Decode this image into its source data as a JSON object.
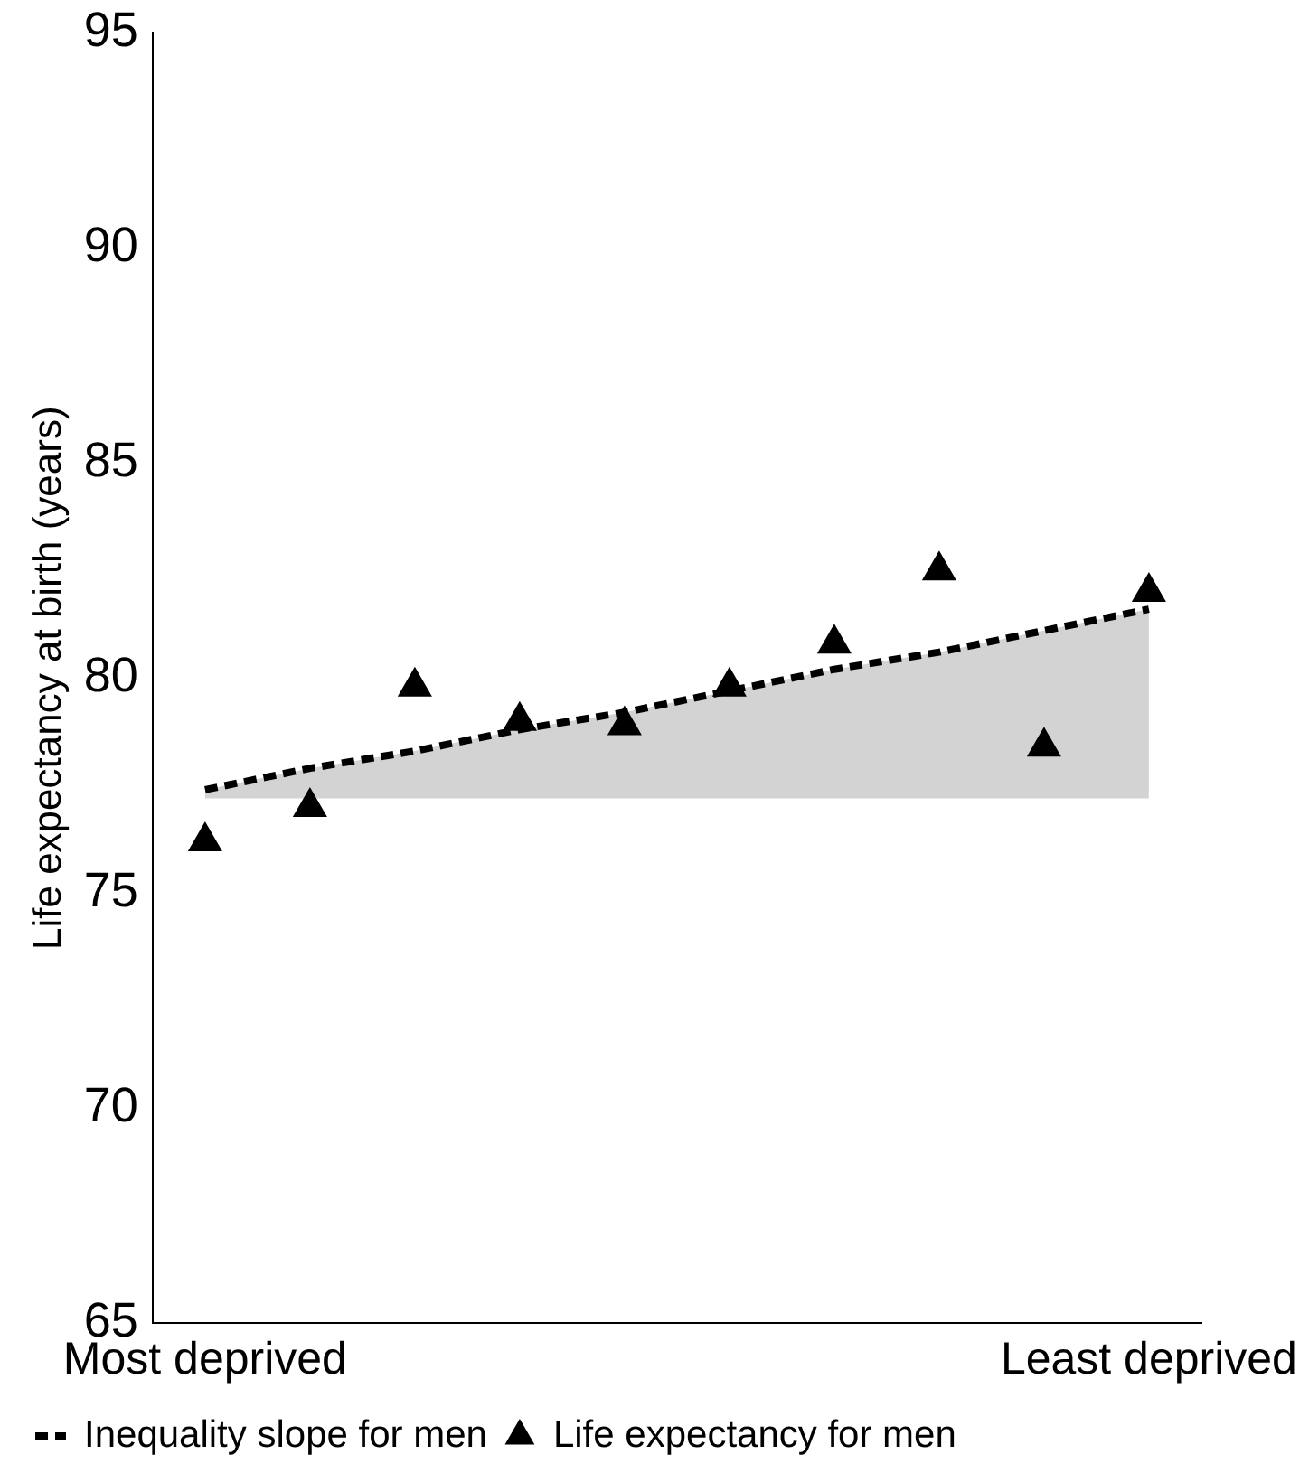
{
  "chart_data": {
    "type": "scatter",
    "ylabel": "Life expectancy at birth (years)",
    "categories": [
      "Most deprived",
      null,
      null,
      null,
      null,
      null,
      null,
      null,
      null,
      "Least deprived"
    ],
    "ylim": [
      65,
      95
    ],
    "yticks": [
      65,
      70,
      75,
      80,
      85,
      90,
      95
    ],
    "grid": false,
    "legend": "bottom",
    "series": [
      {
        "name": "Inequality slope for men",
        "type": "line",
        "color": "#000000",
        "line_style": "dashed",
        "marker": "none",
        "values": [
          77.4,
          77.9,
          78.3,
          78.8,
          79.2,
          79.7,
          80.2,
          80.6,
          81.1,
          81.6
        ],
        "lower": [
          77.2,
          77.2,
          77.2,
          77.2,
          77.2,
          77.2,
          77.2,
          77.2,
          77.2,
          77.2
        ],
        "upper": [
          77.4,
          77.9,
          78.3,
          78.8,
          79.2,
          79.7,
          80.2,
          80.6,
          81.1,
          81.6
        ]
      },
      {
        "name": "Life expectancy for men",
        "color": "#000000",
        "marker": "triangle",
        "values": [
          76.2,
          77.0,
          79.8,
          79.0,
          78.9,
          79.8,
          80.8,
          82.5,
          78.4,
          82.0
        ]
      }
    ]
  }
}
